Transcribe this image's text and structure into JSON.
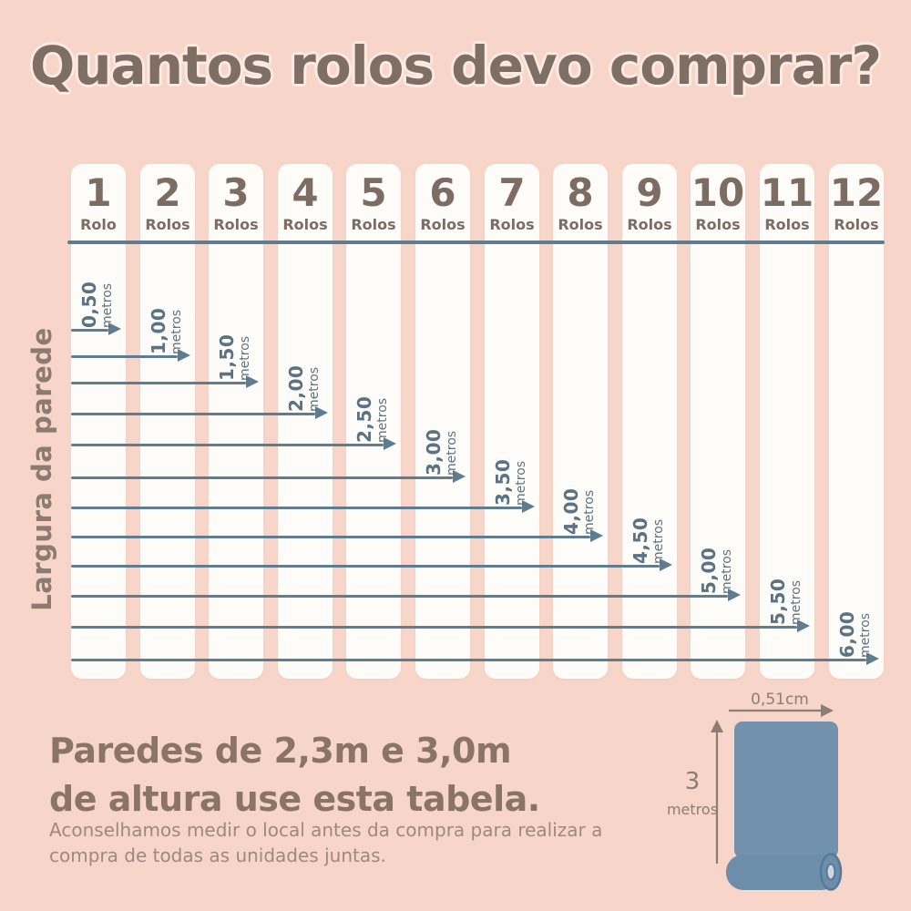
{
  "title": "Quantos rolos devo comprar?",
  "y_axis_label": "Largura da parede",
  "table": {
    "columns": [
      {
        "number": "1",
        "label": "Rolo"
      },
      {
        "number": "2",
        "label": "Rolos"
      },
      {
        "number": "3",
        "label": "Rolos"
      },
      {
        "number": "4",
        "label": "Rolos"
      },
      {
        "number": "5",
        "label": "Rolos"
      },
      {
        "number": "6",
        "label": "Rolos"
      },
      {
        "number": "7",
        "label": "Rolos"
      },
      {
        "number": "8",
        "label": "Rolos"
      },
      {
        "number": "9",
        "label": "Rolos"
      },
      {
        "number": "10",
        "label": "Rolos"
      },
      {
        "number": "11",
        "label": "Rolos"
      },
      {
        "number": "12",
        "label": "Rolos"
      }
    ],
    "rows": [
      {
        "value": "0,50",
        "unit": "metros",
        "rolls": 1
      },
      {
        "value": "1,00",
        "unit": "metros",
        "rolls": 2
      },
      {
        "value": "1,50",
        "unit": "metros",
        "rolls": 3
      },
      {
        "value": "2,00",
        "unit": "metros",
        "rolls": 4
      },
      {
        "value": "2,50",
        "unit": "metros",
        "rolls": 5
      },
      {
        "value": "3,00",
        "unit": "metros",
        "rolls": 6
      },
      {
        "value": "3,50",
        "unit": "metros",
        "rolls": 7
      },
      {
        "value": "4,00",
        "unit": "metros",
        "rolls": 8
      },
      {
        "value": "4,50",
        "unit": "metros",
        "rolls": 9
      },
      {
        "value": "5,00",
        "unit": "metros",
        "rolls": 10
      },
      {
        "value": "5,50",
        "unit": "metros",
        "rolls": 11
      },
      {
        "value": "6,00",
        "unit": "metros",
        "rolls": 12
      }
    ]
  },
  "footer": {
    "heading_line1": "Paredes de 2,3m e 3,0m",
    "heading_line2": "de altura use esta tabela.",
    "note_line1": "Aconselhamos medir o local antes da compra para realizar a",
    "note_line2": "compra de todas as unidades juntas."
  },
  "roll_figure": {
    "width_label": "0,51cm",
    "height_value": "3",
    "height_unit": "metros"
  },
  "colors": {
    "background": "#f8d5c9",
    "card_white": "#fefcf9",
    "title_brown": "#7e6e64",
    "header_brown": "#7c6c62",
    "line_slate": "#5f7d8e",
    "label_slate": "#5a7282",
    "heading_brown": "#8a7467",
    "note_gray": "#9b8a80",
    "roll_blue": "#7191ac",
    "roll_blue_dark": "#6d8ea9",
    "roll_ring": "#54799a",
    "roll_hole": "#ccd7df",
    "measure_gray": "#8c7e74"
  },
  "chart_data": {
    "type": "table",
    "title": "Quantos rolos devo comprar?",
    "xlabel": "Largura da parede (metros)",
    "ylabel": "Rolos",
    "categories": [
      "1 Rolo",
      "2 Rolos",
      "3 Rolos",
      "4 Rolos",
      "5 Rolos",
      "6 Rolos",
      "7 Rolos",
      "8 Rolos",
      "9 Rolos",
      "10 Rolos",
      "11 Rolos",
      "12 Rolos"
    ],
    "mapping": [
      {
        "largura_metros": 0.5,
        "rolos": 1
      },
      {
        "largura_metros": 1.0,
        "rolos": 2
      },
      {
        "largura_metros": 1.5,
        "rolos": 3
      },
      {
        "largura_metros": 2.0,
        "rolos": 4
      },
      {
        "largura_metros": 2.5,
        "rolos": 5
      },
      {
        "largura_metros": 3.0,
        "rolos": 6
      },
      {
        "largura_metros": 3.5,
        "rolos": 7
      },
      {
        "largura_metros": 4.0,
        "rolos": 8
      },
      {
        "largura_metros": 4.5,
        "rolos": 9
      },
      {
        "largura_metros": 5.0,
        "rolos": 10
      },
      {
        "largura_metros": 5.5,
        "rolos": 11
      },
      {
        "largura_metros": 6.0,
        "rolos": 12
      }
    ],
    "annotations": [
      "Paredes de 2,3m e 3,0m de altura use esta tabela.",
      "Aconselhamos medir o local antes da compra para realizar a compra de todas as unidades juntas.",
      "Rolo: 0,51cm de largura x 3 metros de altura"
    ]
  }
}
